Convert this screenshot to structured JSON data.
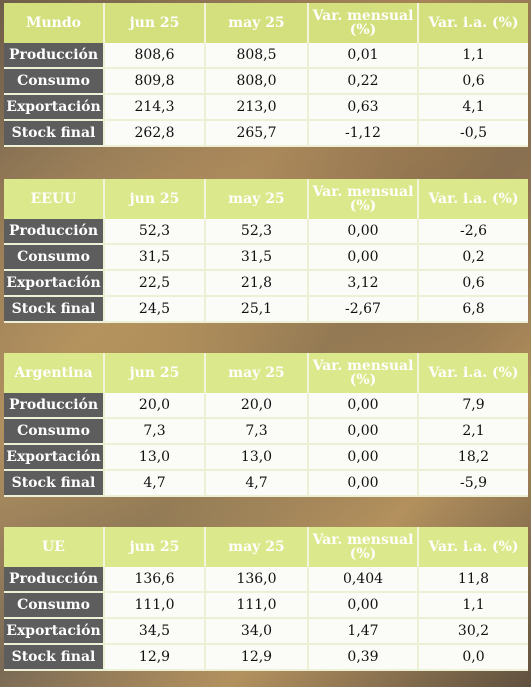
{
  "headers": {
    "jun": "jun 25",
    "may": "may 25",
    "var_mensual": "Var. mensual (%)",
    "var_ia": "Var. i.a. (%)"
  },
  "row_labels": [
    "Producción",
    "Consumo",
    "Exportación",
    "Stock final"
  ],
  "panels": [
    {
      "region": "Mundo",
      "rows": [
        [
          "808,6",
          "808,5",
          "0,01",
          "1,1"
        ],
        [
          "809,8",
          "808,0",
          "0,22",
          "0,6"
        ],
        [
          "214,3",
          "213,0",
          "0,63",
          "4,1"
        ],
        [
          "262,8",
          "265,7",
          "-1,12",
          "-0,5"
        ]
      ]
    },
    {
      "region": "EEUU",
      "rows": [
        [
          "52,3",
          "52,3",
          "0,00",
          "-2,6"
        ],
        [
          "31,5",
          "31,5",
          "0,00",
          "0,2"
        ],
        [
          "22,5",
          "21,8",
          "3,12",
          "0,6"
        ],
        [
          "24,5",
          "25,1",
          "-2,67",
          "6,8"
        ]
      ]
    },
    {
      "region": "Argentina",
      "rows": [
        [
          "20,0",
          "20,0",
          "0,00",
          "7,9"
        ],
        [
          "7,3",
          "7,3",
          "0,00",
          "2,1"
        ],
        [
          "13,0",
          "13,0",
          "0,00",
          "18,2"
        ],
        [
          "4,7",
          "4,7",
          "0,00",
          "-5,9"
        ]
      ]
    },
    {
      "region": "UE",
      "rows": [
        [
          "136,6",
          "136,0",
          "0,404",
          "11,8"
        ],
        [
          "111,0",
          "111,0",
          "0,00",
          "1,1"
        ],
        [
          "34,5",
          "34,0",
          "1,47",
          "30,2"
        ],
        [
          "12,9",
          "12,9",
          "0,39",
          "0,0"
        ]
      ]
    }
  ]
}
